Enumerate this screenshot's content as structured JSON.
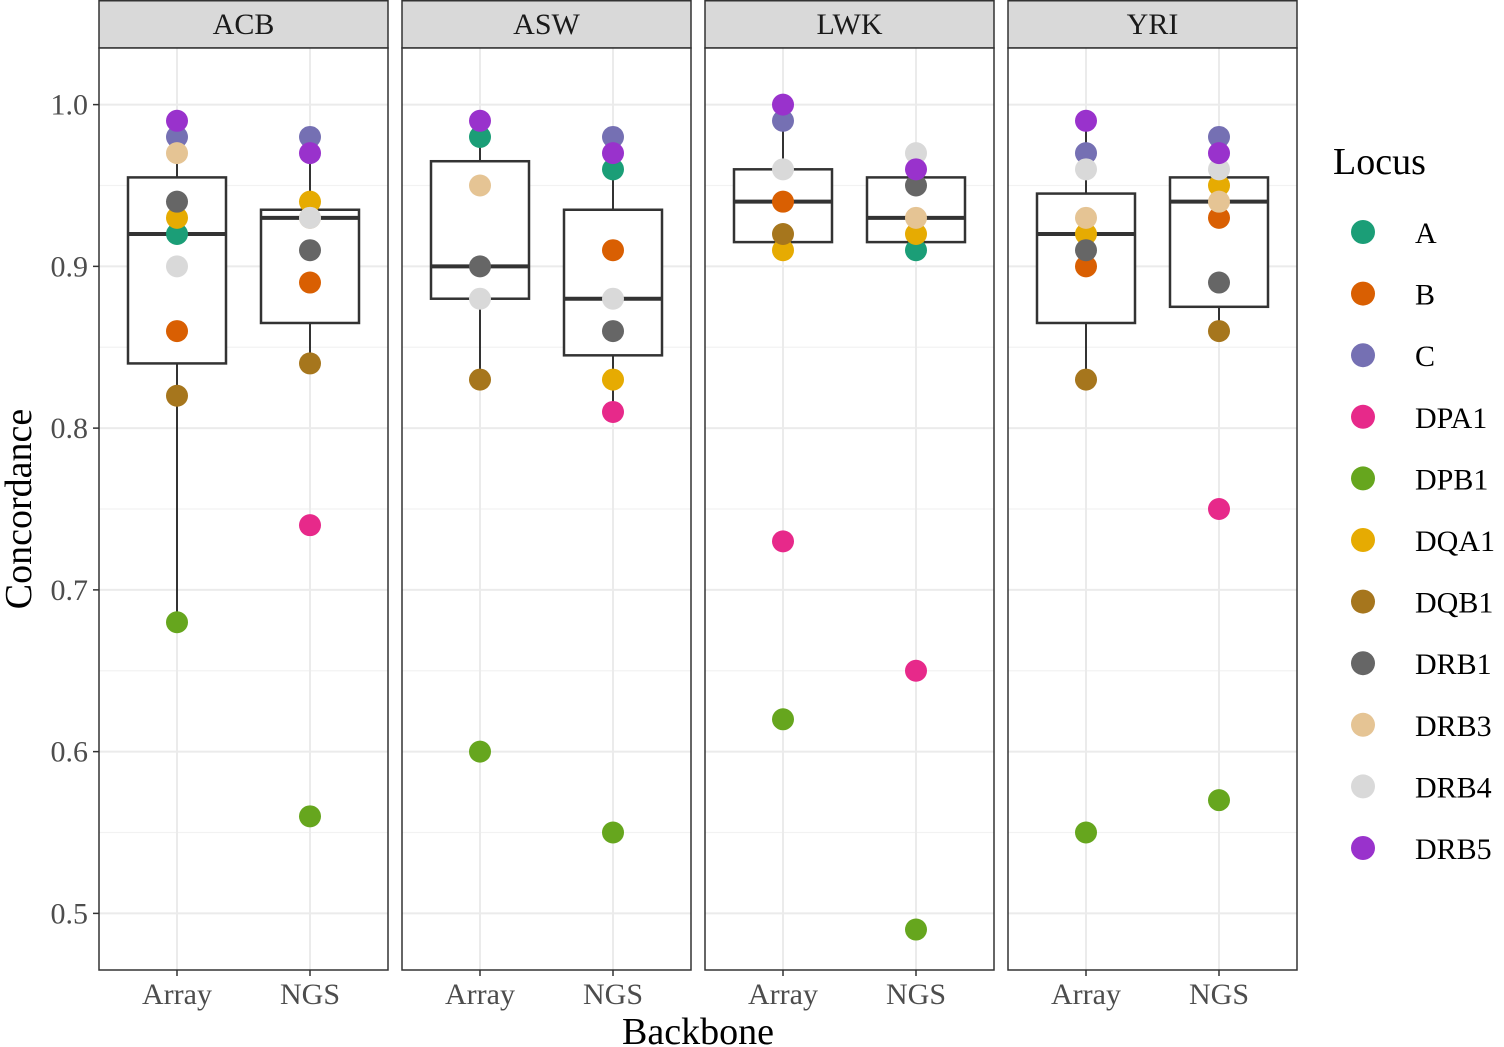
{
  "chart_data": {
    "type": "box+scatter",
    "xlabel": "Backbone",
    "ylabel": "Concordance",
    "ylim": [
      0.465,
      1.035
    ],
    "yticks": [
      0.5,
      0.6,
      0.7,
      0.8,
      0.9,
      1.0
    ],
    "ytick_labels": [
      "0.5",
      "0.6",
      "0.7",
      "0.8",
      "0.9",
      "1.0"
    ],
    "categories": [
      "Array",
      "NGS"
    ],
    "legend": {
      "title": "Locus",
      "position": "right",
      "entries": [
        {
          "name": "A",
          "color": "#1b9e77"
        },
        {
          "name": "B",
          "color": "#d95f02"
        },
        {
          "name": "C",
          "color": "#7570b3"
        },
        {
          "name": "DPA1",
          "color": "#e7298a"
        },
        {
          "name": "DPB1",
          "color": "#66a61e"
        },
        {
          "name": "DQA1",
          "color": "#e6ab02"
        },
        {
          "name": "DQB1",
          "color": "#a6761d"
        },
        {
          "name": "DRB1",
          "color": "#666666"
        },
        {
          "name": "DRB3",
          "color": "#e5c494"
        },
        {
          "name": "DRB4",
          "color": "#d9d9d9"
        },
        {
          "name": "DRB5",
          "color": "#9932cc"
        }
      ]
    },
    "panels": [
      {
        "name": "ACB",
        "groups": [
          {
            "backbone": "Array",
            "box": {
              "q1": 0.84,
              "median": 0.92,
              "q3": 0.955,
              "lower": 0.68,
              "upper": 0.99
            },
            "points": {
              "A": 0.92,
              "B": 0.86,
              "C": 0.98,
              "DPA1": null,
              "DPB1": 0.68,
              "DQA1": 0.93,
              "DQB1": 0.82,
              "DRB1": 0.94,
              "DRB3": 0.97,
              "DRB4": 0.9,
              "DRB5": 0.99
            }
          },
          {
            "backbone": "NGS",
            "box": {
              "q1": 0.865,
              "median": 0.93,
              "q3": 0.935,
              "lower": 0.84,
              "upper": 0.98
            },
            "points": {
              "A": null,
              "B": 0.89,
              "C": 0.98,
              "DPA1": 0.74,
              "DPB1": 0.56,
              "DQA1": 0.94,
              "DQB1": 0.84,
              "DRB1": 0.91,
              "DRB3": 0.93,
              "DRB4": 0.93,
              "DRB5": 0.97
            }
          }
        ]
      },
      {
        "name": "ASW",
        "groups": [
          {
            "backbone": "Array",
            "box": {
              "q1": 0.88,
              "median": 0.9,
              "q3": 0.965,
              "lower": 0.83,
              "upper": 0.99
            },
            "points": {
              "A": 0.98,
              "B": null,
              "C": null,
              "DPA1": null,
              "DPB1": 0.6,
              "DQA1": null,
              "DQB1": 0.83,
              "DRB1": 0.9,
              "DRB3": 0.95,
              "DRB4": 0.88,
              "DRB5": 0.99
            }
          },
          {
            "backbone": "NGS",
            "box": {
              "q1": 0.845,
              "median": 0.88,
              "q3": 0.935,
              "lower": 0.81,
              "upper": 0.98
            },
            "points": {
              "A": 0.96,
              "B": 0.91,
              "C": 0.98,
              "DPA1": 0.81,
              "DPB1": 0.55,
              "DQA1": 0.83,
              "DQB1": null,
              "DRB1": 0.86,
              "DRB3": null,
              "DRB4": 0.88,
              "DRB5": 0.97
            }
          }
        ]
      },
      {
        "name": "LWK",
        "groups": [
          {
            "backbone": "Array",
            "box": {
              "q1": 0.915,
              "median": 0.94,
              "q3": 0.96,
              "lower": 0.91,
              "upper": 1.0
            },
            "points": {
              "A": null,
              "B": 0.94,
              "C": 0.99,
              "DPA1": 0.73,
              "DPB1": 0.62,
              "DQA1": 0.91,
              "DQB1": 0.92,
              "DRB1": null,
              "DRB3": null,
              "DRB4": 0.96,
              "DRB5": 1.0
            }
          },
          {
            "backbone": "NGS",
            "box": {
              "q1": 0.915,
              "median": 0.93,
              "q3": 0.955,
              "lower": 0.91,
              "upper": 0.97
            },
            "points": {
              "A": 0.91,
              "B": null,
              "C": null,
              "DPA1": 0.65,
              "DPB1": 0.49,
              "DQA1": 0.92,
              "DQB1": null,
              "DRB1": 0.95,
              "DRB3": 0.93,
              "DRB4": 0.97,
              "DRB5": 0.96
            }
          }
        ]
      },
      {
        "name": "YRI",
        "groups": [
          {
            "backbone": "Array",
            "box": {
              "q1": 0.865,
              "median": 0.92,
              "q3": 0.945,
              "lower": 0.83,
              "upper": 0.99
            },
            "points": {
              "A": null,
              "B": 0.9,
              "C": 0.97,
              "DPA1": null,
              "DPB1": 0.55,
              "DQA1": 0.92,
              "DQB1": 0.83,
              "DRB1": 0.91,
              "DRB3": 0.93,
              "DRB4": 0.96,
              "DRB5": 0.99
            }
          },
          {
            "backbone": "NGS",
            "box": {
              "q1": 0.875,
              "median": 0.94,
              "q3": 0.955,
              "lower": 0.86,
              "upper": 0.98
            },
            "points": {
              "A": null,
              "B": 0.93,
              "C": 0.98,
              "DPA1": 0.75,
              "DPB1": 0.57,
              "DQA1": 0.95,
              "DQB1": 0.86,
              "DRB1": 0.89,
              "DRB3": 0.94,
              "DRB4": 0.96,
              "DRB5": 0.97
            }
          }
        ]
      }
    ]
  }
}
